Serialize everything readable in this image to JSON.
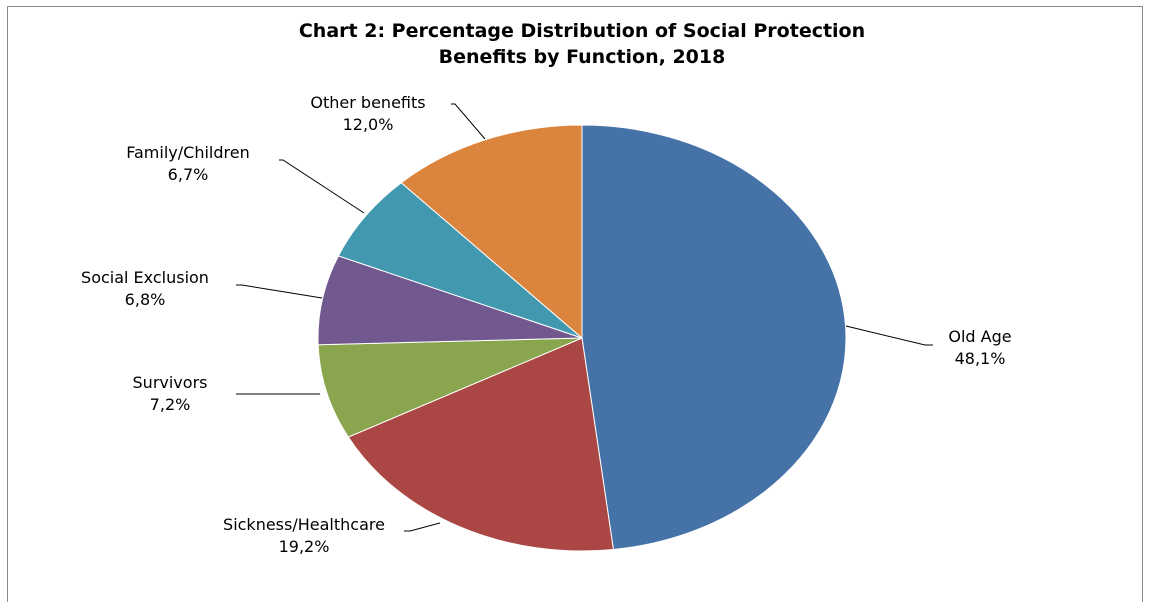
{
  "chart_data": {
    "type": "pie",
    "title_lines": [
      "Chart 2: Percentage Distribution of Social Protection",
      "Benefits by Function, 2018"
    ],
    "slices": [
      {
        "name": "Old Age",
        "value": 48.1,
        "label": "48,1%",
        "color": "#4572a7"
      },
      {
        "name": "Sickness/Healthcare",
        "value": 19.2,
        "label": "19,2%",
        "color": "#aa4643"
      },
      {
        "name": "Survivors",
        "value": 7.2,
        "label": "7,2%",
        "color": "#89a54e"
      },
      {
        "name": "Social Exclusion",
        "value": 6.8,
        "label": "6,8%",
        "color": "#71588f"
      },
      {
        "name": "Family/Children",
        "value": 6.7,
        "label": "6,7%",
        "color": "#4198af"
      },
      {
        "name": "Other benefits",
        "value": 12.0,
        "label": "12,0%",
        "color": "#db843d"
      }
    ],
    "legend": "none"
  }
}
